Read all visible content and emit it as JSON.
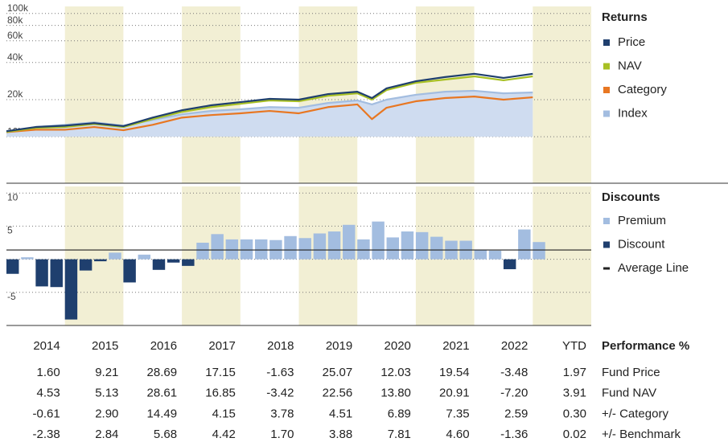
{
  "chart_data": [
    {
      "type": "line",
      "title": "Returns",
      "log_scale": true,
      "grid": true,
      "xlim": [
        2014,
        2024
      ],
      "ylim": [
        4200,
        114000
      ],
      "yticks": [
        {
          "value": 10000,
          "label": "10k"
        },
        {
          "value": 20000,
          "label": "20k"
        },
        {
          "value": 40000,
          "label": "40k"
        },
        {
          "value": 60000,
          "label": "60k"
        },
        {
          "value": 80000,
          "label": "80k"
        },
        {
          "value": 100000,
          "label": "100k"
        }
      ],
      "x": [
        2014,
        2014.5,
        2015,
        2015.5,
        2016,
        2016.5,
        2017,
        2017.5,
        2018,
        2018.5,
        2019,
        2019.5,
        2020,
        2020.25,
        2020.5,
        2021,
        2021.5,
        2022,
        2022.5,
        2023
      ],
      "series": [
        {
          "name": "Index",
          "color": "#a3bde0",
          "fill": "#cfdcf0",
          "values": [
            10900,
            12000,
            12500,
            13100,
            12300,
            13700,
            15200,
            16200,
            16700,
            17400,
            17200,
            18800,
            19700,
            18300,
            20000,
            21900,
            23200,
            23600,
            22500,
            22900
          ]
        },
        {
          "name": "Category",
          "color": "#e87722",
          "values": [
            10900,
            11400,
            11400,
            12000,
            11300,
            12500,
            14300,
            15000,
            15500,
            16200,
            15500,
            17400,
            18300,
            13900,
            17200,
            19400,
            20600,
            21200,
            20000,
            20900
          ]
        },
        {
          "name": "NAV",
          "color": "#a8c023",
          "values": [
            10950,
            11800,
            12000,
            12700,
            12000,
            13900,
            15900,
            17400,
            18500,
            19700,
            19400,
            21500,
            22500,
            20000,
            23900,
            27400,
            29100,
            30900,
            28700,
            30900
          ]
        },
        {
          "name": "Price",
          "color": "#1f3f6e",
          "values": [
            11100,
            12000,
            12300,
            12900,
            12200,
            14300,
            16400,
            18000,
            19100,
            20300,
            20000,
            22200,
            23200,
            20600,
            24700,
            28200,
            30500,
            32400,
            30000,
            32400
          ]
        }
      ],
      "legend_order": [
        "Price",
        "NAV",
        "Category",
        "Index"
      ]
    },
    {
      "type": "bar",
      "title": "Discounts",
      "grid": true,
      "xlim": [
        2014,
        2024
      ],
      "ylim": [
        -10,
        11
      ],
      "yticks": [
        -5,
        0,
        5,
        10
      ],
      "x": [
        2014,
        2014.25,
        2014.5,
        2014.75,
        2015,
        2015.25,
        2015.5,
        2015.75,
        2016,
        2016.25,
        2016.5,
        2016.75,
        2017,
        2017.25,
        2017.5,
        2017.75,
        2018,
        2018.25,
        2018.5,
        2018.75,
        2019,
        2019.25,
        2019.5,
        2019.75,
        2020,
        2020.25,
        2020.5,
        2020.75,
        2021,
        2021.25,
        2021.5,
        2021.75,
        2022,
        2022.25,
        2022.5,
        2022.75,
        2023
      ],
      "values": [
        -2.2,
        0.3,
        -4.1,
        -4.2,
        -9.1,
        -1.7,
        -0.3,
        1.0,
        -3.5,
        0.7,
        -1.6,
        -0.5,
        -1.0,
        2.5,
        3.8,
        3.0,
        3.0,
        3.0,
        2.9,
        3.5,
        3.2,
        3.9,
        4.2,
        5.2,
        3.0,
        5.7,
        3.3,
        4.2,
        4.1,
        3.4,
        2.8,
        2.8,
        1.4,
        1.3,
        -1.5,
        4.5,
        2.6
      ],
      "average": 1.4,
      "legend": [
        {
          "name": "Premium",
          "color": "#a3bde0"
        },
        {
          "name": "Discount",
          "color": "#1f3f6e"
        },
        {
          "name": "Average Line",
          "color": "#222222"
        }
      ]
    }
  ],
  "table": {
    "title": "Performance %",
    "columns": [
      "2014",
      "2015",
      "2016",
      "2017",
      "2018",
      "2019",
      "2020",
      "2021",
      "2022",
      "YTD"
    ],
    "rows": [
      {
        "name": "Fund Price",
        "values": [
          "1.60",
          "9.21",
          "28.69",
          "17.15",
          "-1.63",
          "25.07",
          "12.03",
          "19.54",
          "-3.48",
          "1.97"
        ]
      },
      {
        "name": "Fund NAV",
        "values": [
          "4.53",
          "5.13",
          "28.61",
          "16.85",
          "-3.42",
          "22.56",
          "13.80",
          "20.91",
          "-7.20",
          "3.91"
        ]
      },
      {
        "name": "+/- Category",
        "values": [
          "-0.61",
          "2.90",
          "14.49",
          "4.15",
          "3.78",
          "4.51",
          "6.89",
          "7.35",
          "2.59",
          "0.30"
        ]
      },
      {
        "name": "+/- Benchmark",
        "values": [
          "-2.38",
          "2.84",
          "5.68",
          "4.42",
          "1.70",
          "3.88",
          "7.81",
          "4.60",
          "-1.36",
          "0.02"
        ]
      }
    ]
  }
}
